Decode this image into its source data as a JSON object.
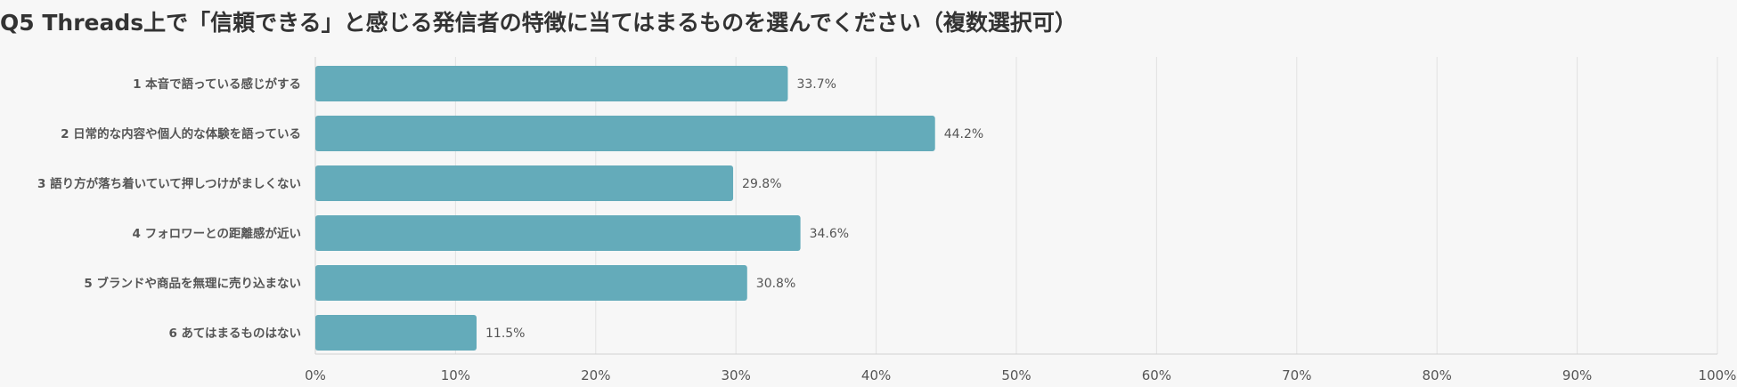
{
  "chart_data": {
    "type": "bar",
    "orientation": "horizontal",
    "title": "Q5 Threads上で「信頼できる」と感じる発信者の特徴に当てはまるものを選んでください（複数選択可）",
    "categories": [
      "1 本音で語っている感じがする",
      "2 日常的な内容や個人的な体験を語っている",
      "3 語り方が落ち着いていて押しつけがましくない",
      "4 フォロワーとの距離感が近い",
      "5 ブランドや商品を無理に売り込まない",
      "6 あてはまるものはない"
    ],
    "values": [
      33.7,
      44.2,
      29.8,
      34.6,
      30.8,
      11.5
    ],
    "value_labels": [
      "33.7%",
      "44.2%",
      "29.8%",
      "34.6%",
      "30.8%",
      "11.5%"
    ],
    "xlim": [
      0,
      100
    ],
    "x_ticks": [
      "0%",
      "10%",
      "20%",
      "30%",
      "40%",
      "50%",
      "60%",
      "70%",
      "80%",
      "90%",
      "100%"
    ],
    "grid": true,
    "colors": {
      "bar": "#64abba",
      "grid": "#e2e2e2",
      "axis": "#d0d0d0",
      "background": "#f7f7f7"
    }
  }
}
